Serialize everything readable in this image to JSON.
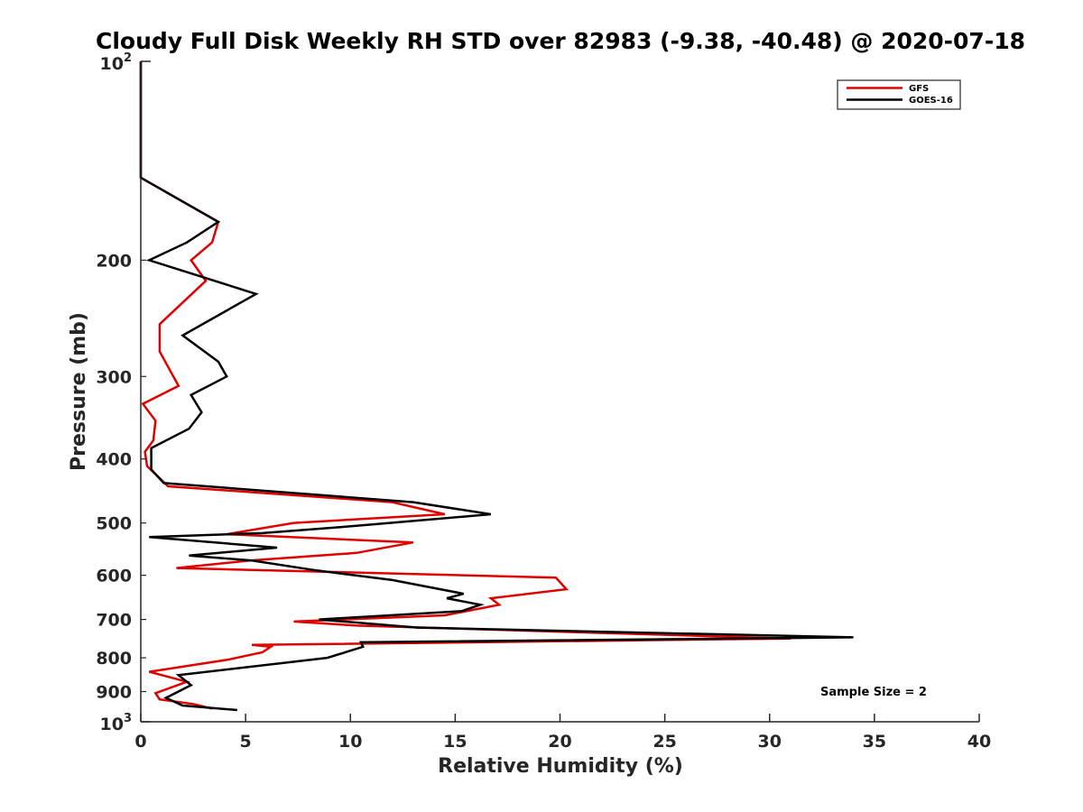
{
  "chart_data": {
    "type": "line",
    "title": "Cloudy Full Disk Weekly RH STD over 82983 (-9.38, -40.48) @ 2020-07-18",
    "xlabel": "Relative Humidity (%)",
    "ylabel": "Pressure (mb)",
    "xlim": [
      0,
      40
    ],
    "ylim": [
      100,
      1000
    ],
    "y_scale": "log",
    "y_reversed": true,
    "x_ticks": [
      "0",
      "5",
      "10",
      "15",
      "20",
      "25",
      "30",
      "35",
      "40"
    ],
    "y_ticks": [
      {
        "value": 200,
        "label": "200"
      },
      {
        "value": 300,
        "label": "300"
      },
      {
        "value": 400,
        "label": "400"
      },
      {
        "value": 500,
        "label": "500"
      },
      {
        "value": 600,
        "label": "600"
      },
      {
        "value": 700,
        "label": "700"
      },
      {
        "value": 800,
        "label": "800"
      },
      {
        "value": 900,
        "label": "900"
      }
    ],
    "y_end_ticks": [
      {
        "value": 100,
        "base": "10",
        "exp": "2"
      },
      {
        "value": 1000,
        "base": "10",
        "exp": "3"
      }
    ],
    "grid": false,
    "legend_position": "top-right",
    "annotation": "Sample Size = 2",
    "series": [
      {
        "name": "GFS",
        "color": "#e00000",
        "points": [
          [
            0.0,
            100
          ],
          [
            0.0,
            125
          ],
          [
            0.0,
            150
          ],
          [
            3.7,
            175
          ],
          [
            3.4,
            188
          ],
          [
            2.4,
            200
          ],
          [
            3.1,
            215
          ],
          [
            0.9,
            250
          ],
          [
            0.9,
            275
          ],
          [
            1.8,
            310
          ],
          [
            0.1,
            330
          ],
          [
            0.7,
            350
          ],
          [
            0.6,
            375
          ],
          [
            0.2,
            390
          ],
          [
            0.3,
            410
          ],
          [
            1.3,
            440
          ],
          [
            12.0,
            465
          ],
          [
            14.5,
            485
          ],
          [
            7.3,
            500
          ],
          [
            4.1,
            520
          ],
          [
            13.0,
            535
          ],
          [
            10.3,
            555
          ],
          [
            5.2,
            570
          ],
          [
            1.7,
            585
          ],
          [
            19.8,
            605
          ],
          [
            20.3,
            630
          ],
          [
            16.7,
            650
          ],
          [
            17.1,
            665
          ],
          [
            14.5,
            690
          ],
          [
            7.3,
            705
          ],
          [
            10.3,
            715
          ],
          [
            29.0,
            745
          ],
          [
            31.0,
            748
          ],
          [
            5.3,
            765
          ],
          [
            6.2,
            770
          ],
          [
            5.8,
            785
          ],
          [
            4.2,
            805
          ],
          [
            0.4,
            840
          ],
          [
            2.2,
            870
          ],
          [
            0.7,
            905
          ],
          [
            0.9,
            925
          ],
          [
            2.5,
            940
          ],
          [
            3.4,
            955
          ]
        ]
      },
      {
        "name": "GOES-16",
        "color": "#000000",
        "points": [
          [
            0.0,
            100
          ],
          [
            0.0,
            125
          ],
          [
            0.0,
            150
          ],
          [
            3.7,
            175
          ],
          [
            2.2,
            188
          ],
          [
            0.4,
            200
          ],
          [
            5.5,
            225
          ],
          [
            2.0,
            260
          ],
          [
            3.7,
            285
          ],
          [
            4.1,
            300
          ],
          [
            2.4,
            320
          ],
          [
            2.9,
            340
          ],
          [
            2.3,
            360
          ],
          [
            0.5,
            385
          ],
          [
            0.5,
            415
          ],
          [
            1.1,
            435
          ],
          [
            13.0,
            465
          ],
          [
            16.7,
            485
          ],
          [
            10.3,
            505
          ],
          [
            5.8,
            518
          ],
          [
            0.4,
            525
          ],
          [
            6.5,
            545
          ],
          [
            2.3,
            560
          ],
          [
            5.3,
            570
          ],
          [
            8.4,
            590
          ],
          [
            12.0,
            610
          ],
          [
            15.4,
            640
          ],
          [
            14.6,
            650
          ],
          [
            16.2,
            665
          ],
          [
            15.3,
            680
          ],
          [
            8.5,
            700
          ],
          [
            13.2,
            720
          ],
          [
            34.0,
            745
          ],
          [
            10.5,
            758
          ],
          [
            10.6,
            770
          ],
          [
            8.9,
            800
          ],
          [
            1.8,
            850
          ],
          [
            2.4,
            880
          ],
          [
            1.2,
            920
          ],
          [
            2.0,
            945
          ],
          [
            4.6,
            960
          ]
        ]
      }
    ]
  }
}
